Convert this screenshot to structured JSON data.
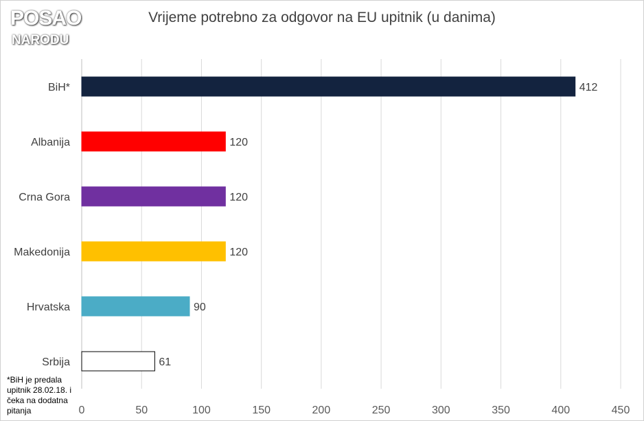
{
  "logo": {
    "line1": "POSAO",
    "line2": "NARODU"
  },
  "footnote": "*BiH je predala upitnik 28.02.18. i čeka na dodatna pitanja",
  "chart_data": {
    "type": "bar",
    "orientation": "horizontal",
    "title": "Vrijeme potrebno za odgovor na EU upitnik (u danima)",
    "xlabel": "",
    "ylabel": "",
    "xlim": [
      0,
      450
    ],
    "x_ticks": [
      0,
      50,
      100,
      150,
      200,
      250,
      300,
      350,
      400,
      450
    ],
    "grid": true,
    "legend": "none",
    "categories": [
      "BiH*",
      "Albanija",
      "Crna Gora",
      "Makedonija",
      "Hrvatska",
      "Srbija"
    ],
    "values": [
      412,
      120,
      120,
      120,
      90,
      61
    ],
    "data_labels": [
      "412",
      "120",
      "120",
      "120",
      "90",
      "61"
    ],
    "colors": [
      "#13233f",
      "#ff0000",
      "#7030a0",
      "#ffc000",
      "#4bacc6",
      "#ffffff"
    ],
    "outline": [
      "#13233f",
      "#ff0000",
      "#7030a0",
      "#ffc000",
      "#4bacc6",
      "#000000"
    ]
  }
}
